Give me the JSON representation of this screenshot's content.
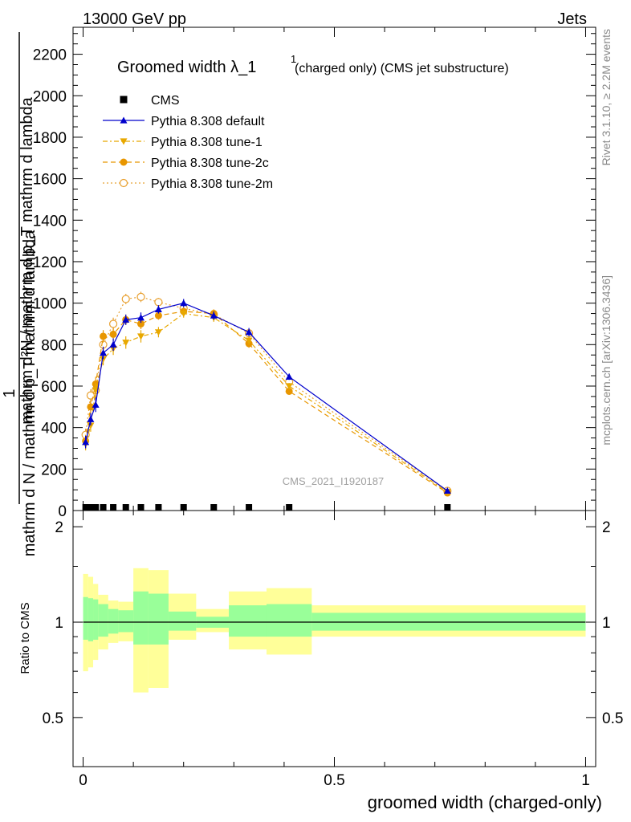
{
  "header": {
    "left": "13000 GeV pp",
    "right": "Jets"
  },
  "side_labels": {
    "rivet": "Rivet 3.1.10, ≥ 2.2M events",
    "mcplots": "mcplots.cern.ch [arXiv:1306.3436]"
  },
  "chart_data": {
    "type": "scatter",
    "title_main": "Groomed width λ_1",
    "title_super": "1",
    "title_rest": "(charged only) (CMS jet substructure)",
    "watermark": "CMS_2021_I1920187",
    "xlabel": "groomed width (charged-only)",
    "ylabel_upper_numerator": "1",
    "ylabel_upper_denominator": "mathrm d N / mathrm d p_T mathrm d lambda",
    "ylabel_upper_right": "mathrm d²N / mathrm d p_T mathrm d lambda",
    "ylabel_ratio": "Ratio to CMS",
    "xlim": [
      -0.02,
      1.02
    ],
    "ylim": [
      0,
      2330
    ],
    "ratio_ylim": [
      0.35,
      2.25
    ],
    "x_ticks": [
      "0",
      "0.5",
      "1"
    ],
    "x_tick_values": [
      0,
      0.5,
      1
    ],
    "y_ticks": [
      "0",
      "200",
      "400",
      "600",
      "800",
      "1000",
      "1200",
      "1400",
      "1600",
      "1800",
      "2000",
      "2200"
    ],
    "y_tick_values": [
      0,
      200,
      400,
      600,
      800,
      1000,
      1200,
      1400,
      1600,
      1800,
      2000,
      2200
    ],
    "ratio_ticks": [
      "0.5",
      "1",
      "2"
    ],
    "ratio_tick_values": [
      0.5,
      1,
      2
    ],
    "legend": [
      {
        "name": "CMS",
        "color": "#000000",
        "marker": "square",
        "line": "none"
      },
      {
        "name": "Pythia 8.308 default",
        "color": "#0000cc",
        "marker": "triangle-up",
        "line": "solid"
      },
      {
        "name": "Pythia 8.308 tune-1",
        "color": "#e8a800",
        "marker": "triangle-down",
        "line": "dashdot"
      },
      {
        "name": "Pythia 8.308 tune-2c",
        "color": "#e89600",
        "marker": "circle",
        "line": "dashed"
      },
      {
        "name": "Pythia 8.308 tune-2m",
        "color": "#e8a030",
        "marker": "open-circle",
        "line": "dotted"
      }
    ],
    "cms_x": [
      0.005,
      0.015,
      0.025,
      0.04,
      0.06,
      0.085,
      0.115,
      0.15,
      0.2,
      0.26,
      0.33,
      0.41,
      0.725
    ],
    "series": [
      {
        "name": "Pythia 8.308 default",
        "color": "#0000cc",
        "x": [
          0.005,
          0.015,
          0.025,
          0.04,
          0.06,
          0.085,
          0.115,
          0.15,
          0.2,
          0.26,
          0.33,
          0.41,
          0.725
        ],
        "values": [
          330,
          440,
          510,
          760,
          800,
          920,
          930,
          970,
          1000,
          940,
          860,
          645,
          95
        ],
        "errors": [
          30,
          30,
          35,
          30,
          30,
          25,
          25,
          20,
          20,
          20,
          20,
          15,
          6
        ]
      },
      {
        "name": "Pythia 8.308 tune-1",
        "color": "#e8a800",
        "x": [
          0.005,
          0.015,
          0.025,
          0.04,
          0.06,
          0.085,
          0.115,
          0.15,
          0.2,
          0.26,
          0.33,
          0.41,
          0.725
        ],
        "values": [
          320,
          410,
          580,
          730,
          780,
          810,
          840,
          860,
          950,
          930,
          820,
          600,
          90
        ],
        "errors": [
          30,
          30,
          35,
          30,
          30,
          30,
          30,
          25,
          20,
          20,
          20,
          15,
          6
        ]
      },
      {
        "name": "Pythia 8.308 tune-2c",
        "color": "#e89600",
        "x": [
          0.005,
          0.015,
          0.025,
          0.04,
          0.06,
          0.085,
          0.115,
          0.15,
          0.2,
          0.26,
          0.33,
          0.41,
          0.725
        ],
        "values": [
          335,
          500,
          610,
          840,
          850,
          920,
          900,
          940,
          960,
          950,
          805,
          575,
          85
        ],
        "errors": [
          30,
          30,
          35,
          30,
          30,
          25,
          25,
          20,
          20,
          20,
          20,
          15,
          6
        ]
      },
      {
        "name": "Pythia 8.308 tune-2m",
        "color": "#e8a030",
        "x": [
          0.005,
          0.015,
          0.025,
          0.04,
          0.06,
          0.085,
          0.115,
          0.15,
          0.2,
          0.26,
          0.33,
          0.41,
          0.725
        ],
        "values": [
          365,
          555,
          580,
          800,
          900,
          1020,
          1030,
          1005,
          975,
          945,
          855,
          620,
          95
        ],
        "errors": [
          30,
          30,
          35,
          30,
          30,
          25,
          25,
          20,
          20,
          20,
          20,
          15,
          6
        ]
      }
    ],
    "ratio_bands": [
      {
        "x0": 0.0,
        "x1": 0.01,
        "inner": [
          0.88,
          1.2
        ],
        "outer": [
          0.7,
          1.42
        ]
      },
      {
        "x0": 0.01,
        "x1": 0.02,
        "inner": [
          0.87,
          1.19
        ],
        "outer": [
          0.72,
          1.39
        ]
      },
      {
        "x0": 0.02,
        "x1": 0.03,
        "inner": [
          0.88,
          1.18
        ],
        "outer": [
          0.76,
          1.32
        ]
      },
      {
        "x0": 0.03,
        "x1": 0.05,
        "inner": [
          0.9,
          1.14
        ],
        "outer": [
          0.82,
          1.22
        ]
      },
      {
        "x0": 0.05,
        "x1": 0.07,
        "inner": [
          0.92,
          1.1
        ],
        "outer": [
          0.86,
          1.17
        ]
      },
      {
        "x0": 0.07,
        "x1": 0.1,
        "inner": [
          0.93,
          1.09
        ],
        "outer": [
          0.87,
          1.16
        ]
      },
      {
        "x0": 0.1,
        "x1": 0.13,
        "inner": [
          0.85,
          1.25
        ],
        "outer": [
          0.6,
          1.48
        ]
      },
      {
        "x0": 0.13,
        "x1": 0.17,
        "inner": [
          0.85,
          1.23
        ],
        "outer": [
          0.62,
          1.46
        ]
      },
      {
        "x0": 0.17,
        "x1": 0.225,
        "inner": [
          0.94,
          1.08
        ],
        "outer": [
          0.88,
          1.23
        ]
      },
      {
        "x0": 0.225,
        "x1": 0.29,
        "inner": [
          0.96,
          1.04
        ],
        "outer": [
          0.93,
          1.1
        ]
      },
      {
        "x0": 0.29,
        "x1": 0.365,
        "inner": [
          0.9,
          1.13
        ],
        "outer": [
          0.82,
          1.25
        ]
      },
      {
        "x0": 0.365,
        "x1": 0.455,
        "inner": [
          0.9,
          1.14
        ],
        "outer": [
          0.79,
          1.28
        ]
      },
      {
        "x0": 0.455,
        "x1": 1.0,
        "inner": [
          0.94,
          1.07
        ],
        "outer": [
          0.9,
          1.13
        ]
      }
    ]
  }
}
